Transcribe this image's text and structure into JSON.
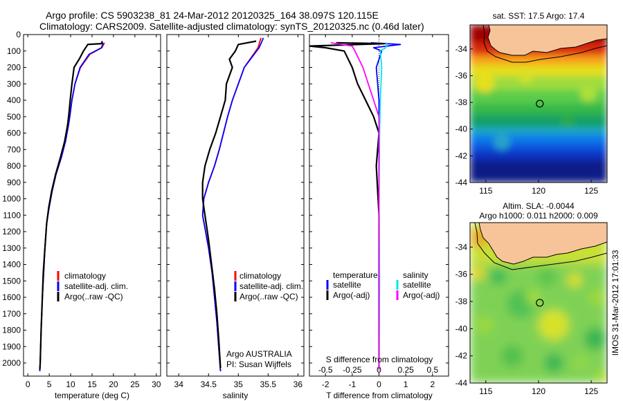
{
  "header": {
    "title_line1": "Argo profile: CS 5903238_81 24-Mar-2012 20120325_164 38.097S 120.115E",
    "title_line2": "Climatology: CARS2009. Satellite-adjusted climatology: synTS_20120325.nc (0.46d later)"
  },
  "colors": {
    "climatology": "#ff0000",
    "satellite": "#0000ff",
    "argo": "#000000",
    "salinity_satellite": "#00e5ee",
    "salinity_argo": "#ff00ff",
    "land": "#f7c49a"
  },
  "chart_data": [
    {
      "id": "temperature",
      "type": "line",
      "xlabel": "temperature (deg C)",
      "ylabel": "",
      "xlim": [
        -1,
        31
      ],
      "ylim": [
        2080,
        0
      ],
      "xticks": [
        0,
        5,
        10,
        15,
        20,
        25,
        30
      ],
      "yticks": [
        0,
        100,
        200,
        300,
        400,
        500,
        600,
        700,
        800,
        900,
        1000,
        1100,
        1200,
        1300,
        1400,
        1500,
        1600,
        1700,
        1800,
        1900,
        2000
      ],
      "legend": [
        "climatology",
        "satellite-adj. clim.",
        "Argo(..raw -QC)"
      ],
      "legend_position": "lower-center",
      "series": [
        {
          "name": "climatology",
          "color": "#ff0000",
          "x": [
            17.9,
            17.3,
            14.5,
            12.3,
            11.0,
            10.3,
            9.8,
            9.5,
            8.8,
            7.8,
            6.6,
            5.7,
            5.0,
            4.4,
            4.0,
            3.7,
            3.4,
            3.1,
            2.9,
            2.8
          ],
          "y": [
            50,
            80,
            120,
            200,
            300,
            400,
            500,
            550,
            650,
            750,
            850,
            950,
            1050,
            1150,
            1300,
            1450,
            1600,
            1800,
            2000,
            2050
          ]
        },
        {
          "name": "satellite-adj. clim.",
          "color": "#0000ff",
          "x": [
            17.6,
            17.2,
            14.3,
            12.2,
            11.0,
            10.3,
            9.8,
            9.5,
            8.8,
            7.8,
            6.6,
            5.7,
            5.0,
            4.4,
            4.0,
            3.7,
            3.4,
            3.1,
            2.9,
            2.8
          ],
          "y": [
            50,
            80,
            120,
            200,
            300,
            400,
            500,
            550,
            650,
            750,
            850,
            950,
            1050,
            1150,
            1300,
            1450,
            1600,
            1800,
            2000,
            2050
          ]
        },
        {
          "name": "Argo(..raw -QC)",
          "color": "#000000",
          "x": [
            17.4,
            17.2,
            14.0,
            13.0,
            12.0,
            10.8,
            10.3,
            9.9,
            9.6,
            9.3,
            8.6,
            7.6,
            6.5,
            5.6,
            4.9,
            4.4,
            4.0,
            3.6,
            3.4,
            3.1,
            2.9,
            2.8
          ],
          "y": [
            40,
            55,
            60,
            100,
            150,
            200,
            300,
            400,
            480,
            550,
            650,
            750,
            850,
            950,
            1050,
            1150,
            1300,
            1450,
            1600,
            1800,
            2000,
            2040
          ]
        }
      ]
    },
    {
      "id": "salinity",
      "type": "line",
      "xlabel": "salinity",
      "ylabel": "",
      "xlim": [
        33.8,
        36.1
      ],
      "ylim": [
        2080,
        0
      ],
      "xticks": [
        34,
        34.5,
        35,
        35.5,
        36
      ],
      "legend": [
        "climatology",
        "satellite-adj. clim.",
        "Argo(..raw -QC)"
      ],
      "legend_position": "lower-center",
      "annotation_line1": "Argo AUSTRALIA",
      "annotation_line2": "PI: Susan Wijffels",
      "series": [
        {
          "name": "climatology",
          "color": "#ff0000",
          "x": [
            35.38,
            35.33,
            35.1,
            35.0,
            34.9,
            34.82,
            34.75,
            34.68,
            34.6,
            34.5,
            34.42,
            34.4,
            34.45,
            34.5,
            34.56,
            34.6,
            34.64,
            34.67,
            34.7
          ],
          "y": [
            20,
            80,
            200,
            300,
            400,
            500,
            600,
            700,
            800,
            900,
            1000,
            1100,
            1200,
            1300,
            1450,
            1600,
            1750,
            1900,
            2050
          ]
        },
        {
          "name": "satellite-adj. clim.",
          "color": "#0000ff",
          "x": [
            35.42,
            35.35,
            35.1,
            35.0,
            34.9,
            34.82,
            34.75,
            34.68,
            34.6,
            34.5,
            34.42,
            34.4,
            34.45,
            34.5,
            34.56,
            34.6,
            34.64,
            34.67,
            34.7
          ],
          "y": [
            20,
            80,
            200,
            300,
            400,
            500,
            600,
            700,
            800,
            900,
            1000,
            1100,
            1200,
            1300,
            1450,
            1600,
            1750,
            1900,
            2050
          ]
        },
        {
          "name": "Argo(..raw -QC)",
          "color": "#000000",
          "x": [
            35.3,
            35.0,
            34.95,
            34.85,
            34.9,
            34.8,
            34.78,
            34.7,
            34.62,
            34.52,
            34.44,
            34.4,
            34.4,
            34.44,
            34.5,
            34.55,
            34.6,
            34.64,
            34.67,
            34.7
          ],
          "y": [
            40,
            60,
            100,
            150,
            200,
            300,
            400,
            500,
            600,
            700,
            800,
            900,
            1000,
            1100,
            1250,
            1400,
            1550,
            1700,
            1850,
            2030
          ]
        }
      ]
    },
    {
      "id": "difference",
      "type": "line",
      "xlabel": "T difference from climatology",
      "xlabel_top": "S difference from climatology",
      "xlim": [
        -2.6,
        2.6
      ],
      "ylim": [
        2080,
        0
      ],
      "xticks": [
        -2,
        -1,
        0,
        1,
        2
      ],
      "xticks_s": [
        -0.5,
        -0.25,
        0,
        0.25,
        0.5
      ],
      "legend_temperature_title": "temperature",
      "legend_salinity_title": "salinity",
      "legend_temperature": [
        "satellite",
        "Argo(-adj)"
      ],
      "legend_salinity": [
        "satellite",
        "Argo(-adj)"
      ],
      "series": [
        {
          "name": "T satellite",
          "color": "#0000ff",
          "x": [
            -0.3,
            0.8,
            -0.2,
            0.1,
            -0.1,
            0.0,
            0.0,
            0.0
          ],
          "y": [
            50,
            60,
            80,
            100,
            200,
            400,
            800,
            2040
          ]
        },
        {
          "name": "T Argo(-adj)",
          "color": "#000000",
          "x": [
            -1.6,
            0.2,
            -2.6,
            -2.0,
            -1.3,
            -1.0,
            -0.8,
            -0.5,
            -0.2,
            0.0,
            -0.1,
            0.0,
            0.0
          ],
          "y": [
            50,
            55,
            70,
            80,
            100,
            200,
            300,
            400,
            500,
            600,
            800,
            1100,
            2040
          ]
        },
        {
          "name": "S satellite",
          "color": "#00e5ee",
          "x": [
            0.3,
            0.25,
            0.05,
            0.1,
            0.05,
            0.02,
            0.0,
            0.02,
            0.0
          ],
          "y": [
            50,
            80,
            100,
            200,
            400,
            600,
            1000,
            1500,
            2040
          ]
        },
        {
          "name": "S Argo(-adj)",
          "color": "#ff00ff",
          "x": [
            -1.8,
            -1.0,
            -0.9,
            -0.6,
            -0.4,
            -0.2,
            0.0,
            0.0,
            0.0
          ],
          "y": [
            50,
            70,
            100,
            200,
            300,
            400,
            500,
            600,
            2040
          ]
        }
      ]
    },
    {
      "id": "sst_map",
      "type": "heatmap",
      "title": "sat. SST: 17.5  Argo: 17.4",
      "xticks": [
        115,
        120,
        125
      ],
      "yticks": [
        -34,
        -36,
        -38,
        -40,
        -42,
        -44
      ],
      "xlim": [
        113.5,
        126.5
      ],
      "ylim": [
        -44,
        -32.2
      ],
      "marker": {
        "lon": 120.115,
        "lat": -38.097
      }
    },
    {
      "id": "sla_map",
      "type": "heatmap",
      "title_line1": "Altim. SLA: -0.0044",
      "title_line2": "Argo h1000: 0.011  h2000: 0.009",
      "xticks": [
        115,
        120,
        125
      ],
      "yticks": [
        -34,
        -36,
        -38,
        -40,
        -42,
        -44
      ],
      "xlim": [
        113.5,
        126.5
      ],
      "ylim": [
        -44,
        -32.2
      ],
      "marker": {
        "lon": 120.115,
        "lat": -38.097
      }
    }
  ],
  "side_label": "IMOS 31-Mar-2012 17:01:33"
}
